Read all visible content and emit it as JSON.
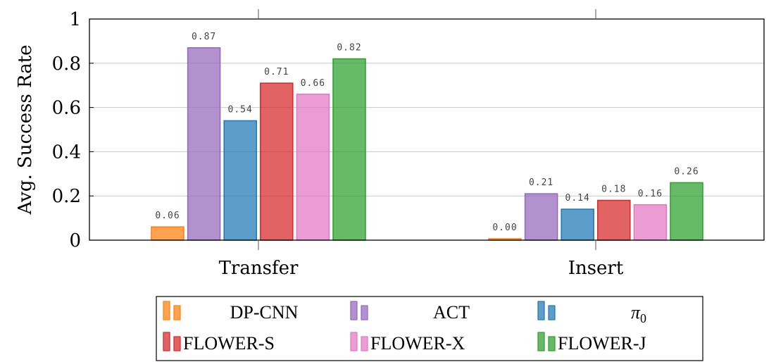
{
  "chart_data": {
    "type": "bar",
    "title": "",
    "xlabel": "",
    "ylabel": "Avg. Success Rate",
    "ylim": [
      0,
      1
    ],
    "yticks": [
      "0",
      "0.2",
      "0.4",
      "0.6",
      "0.8",
      "1"
    ],
    "grid": "horizontal",
    "legend_position": "bottom",
    "categories": [
      "Transfer",
      "Insert"
    ],
    "series": [
      {
        "name": "DP-CNN",
        "values": [
          0.06,
          0.0
        ],
        "labels": [
          "0.06",
          "0.00"
        ],
        "color": "#ff7f0e"
      },
      {
        "name": "ACT",
        "values": [
          0.87,
          0.21
        ],
        "labels": [
          "0.87",
          "0.21"
        ],
        "color": "#9467bd"
      },
      {
        "name": "π0",
        "values": [
          0.54,
          0.14
        ],
        "labels": [
          "0.54",
          "0.14"
        ],
        "color": "#1f77b4"
      },
      {
        "name": "FLOWER-S",
        "values": [
          0.71,
          0.18
        ],
        "labels": [
          "0.71",
          "0.18"
        ],
        "color": "#d62728"
      },
      {
        "name": "FLOWER-X",
        "values": [
          0.66,
          0.16
        ],
        "labels": [
          "0.66",
          "0.16"
        ],
        "color": "#e377c2"
      },
      {
        "name": "FLOWER-J",
        "values": [
          0.82,
          0.26
        ],
        "labels": [
          "0.82",
          "0.26"
        ],
        "color": "#2ca02c"
      }
    ]
  }
}
